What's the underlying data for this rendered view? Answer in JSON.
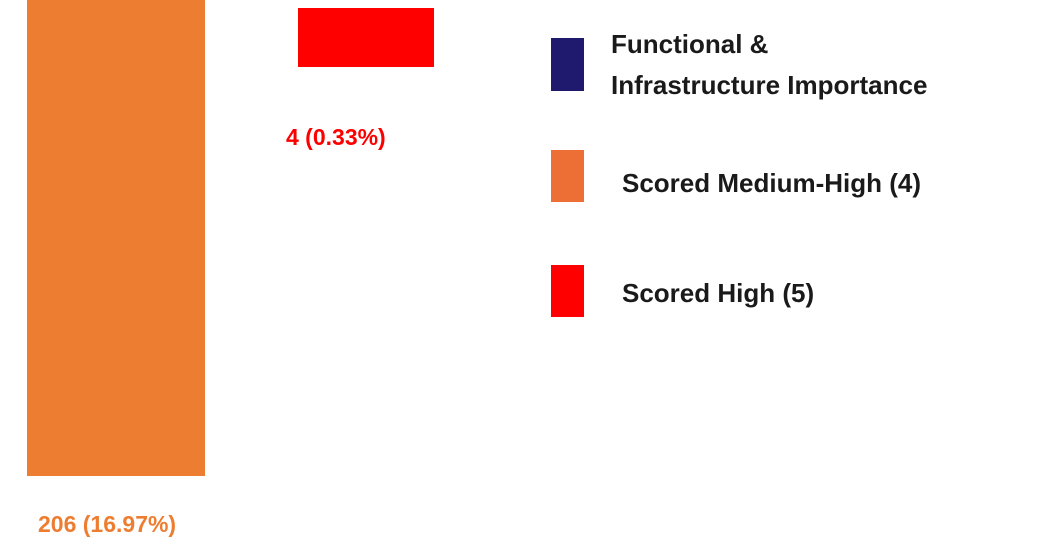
{
  "bars": [
    {
      "label": "206 (16.97%)"
    },
    {
      "label": "4 (0.33%)"
    }
  ],
  "legend": [
    {
      "label": [
        "Functional &",
        "Infrastructure Importance"
      ]
    },
    {
      "label": [
        "Scored Medium-High (4)"
      ]
    },
    {
      "label": [
        "Scored High (5)"
      ]
    }
  ]
}
